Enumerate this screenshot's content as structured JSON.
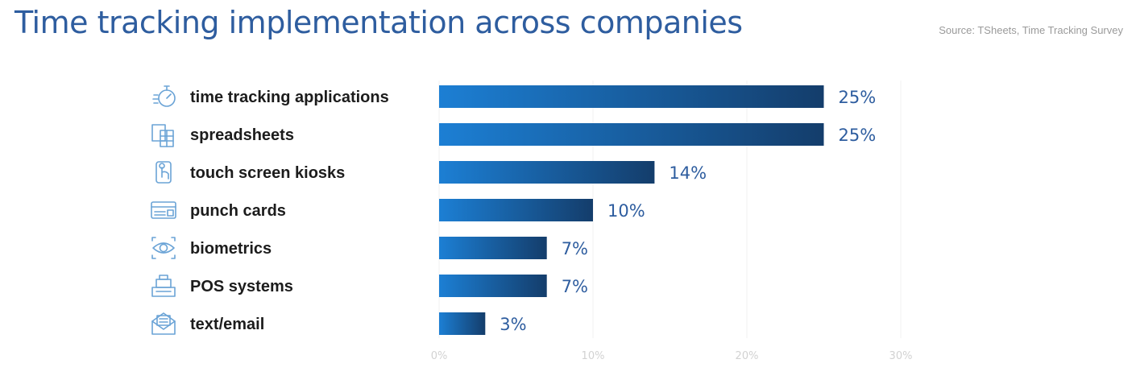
{
  "header": {
    "title": "Time tracking implementation across companies",
    "source": "Source: TSheets, Time Tracking Survey"
  },
  "colors": {
    "bar_start": "#1c7fd4",
    "bar_end": "#143d6b",
    "value_text": "#2e5d9f",
    "icon": "#6aa3d6"
  },
  "chart_data": {
    "type": "bar",
    "orientation": "horizontal",
    "categories": [
      "time tracking applications",
      "spreadsheets",
      "touch screen kiosks",
      "punch cards",
      "biometrics",
      "POS systems",
      "text/email"
    ],
    "icons": [
      "stopwatch-icon",
      "spreadsheet-icon",
      "touch-screen-icon",
      "punch-card-icon",
      "eye-icon",
      "pos-register-icon",
      "email-icon"
    ],
    "values": [
      25,
      25,
      14,
      10,
      7,
      7,
      3
    ],
    "value_labels": [
      "25%",
      "25%",
      "14%",
      "10%",
      "7%",
      "7%",
      "3%"
    ],
    "xlim": [
      0,
      30
    ],
    "xticks": [
      "0%",
      "10%",
      "20%",
      "30%"
    ],
    "grid": true
  }
}
